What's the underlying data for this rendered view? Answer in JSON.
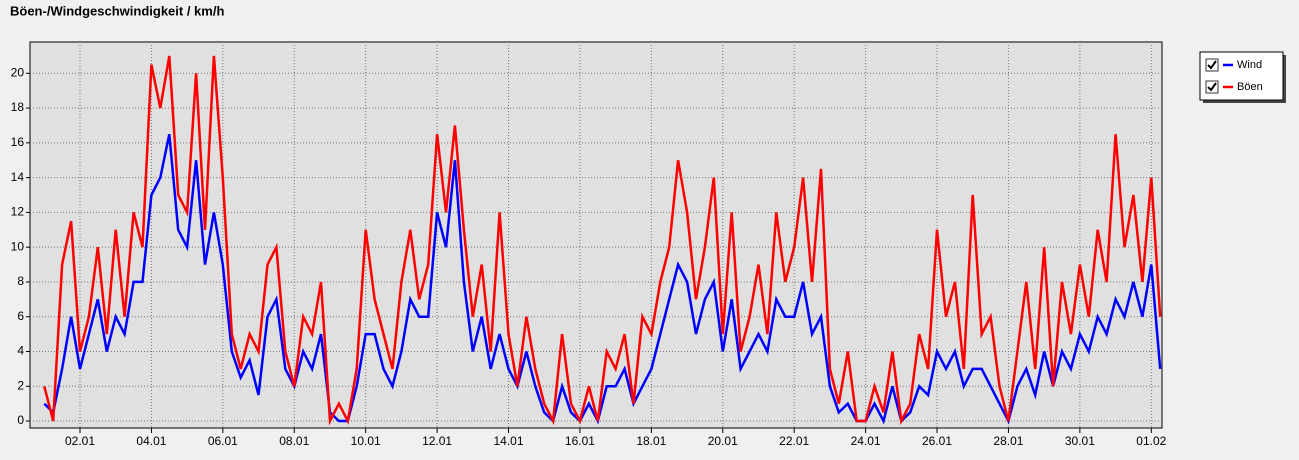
{
  "chart_data": {
    "type": "line",
    "title": "Böen-/Windgeschwindigkeit / km/h",
    "x": [
      1,
      1.25,
      1.5,
      1.75,
      2,
      2.25,
      2.5,
      2.75,
      3,
      3.25,
      3.5,
      3.75,
      4,
      4.25,
      4.5,
      4.75,
      5,
      5.25,
      5.5,
      5.75,
      6,
      6.25,
      6.5,
      6.75,
      7,
      7.25,
      7.5,
      7.75,
      8,
      8.25,
      8.5,
      8.75,
      9,
      9.25,
      9.5,
      9.75,
      10,
      10.25,
      10.5,
      10.75,
      11,
      11.25,
      11.5,
      11.75,
      12,
      12.25,
      12.5,
      12.75,
      13,
      13.25,
      13.5,
      13.75,
      14,
      14.25,
      14.5,
      14.75,
      15,
      15.25,
      15.5,
      15.75,
      16,
      16.25,
      16.5,
      16.75,
      17,
      17.25,
      17.5,
      17.75,
      18,
      18.25,
      18.5,
      18.75,
      19,
      19.25,
      19.5,
      19.75,
      20,
      20.25,
      20.5,
      20.75,
      21,
      21.25,
      21.5,
      21.75,
      22,
      22.25,
      22.5,
      22.75,
      23,
      23.25,
      23.5,
      23.75,
      24,
      24.25,
      24.5,
      24.75,
      25,
      25.25,
      25.5,
      25.75,
      26,
      26.25,
      26.5,
      26.75,
      27,
      27.25,
      27.5,
      27.75,
      28,
      28.25,
      28.5,
      28.75,
      29,
      29.25,
      29.5,
      29.75,
      30,
      30.25,
      30.5,
      30.75,
      31,
      31.25,
      31.5,
      31.75,
      32,
      32.25
    ],
    "series": [
      {
        "name": "Wind",
        "color": "#0000ff",
        "values": [
          1,
          0.5,
          3,
          6,
          3,
          5,
          7,
          4,
          6,
          5,
          8,
          8,
          13,
          14,
          16.5,
          11,
          10,
          15,
          9,
          12,
          9,
          4,
          2.5,
          3.5,
          1.5,
          6,
          7,
          3,
          2,
          4,
          3,
          5,
          0.5,
          0,
          0,
          2,
          5,
          5,
          3,
          2,
          4,
          7,
          6,
          6,
          12,
          10,
          15,
          8,
          4,
          6,
          3,
          5,
          3,
          2,
          4,
          2,
          0.5,
          0,
          2,
          0.5,
          0,
          1,
          0,
          2,
          2,
          3,
          1,
          2,
          3,
          5,
          7,
          9,
          8,
          5,
          7,
          8,
          4,
          7,
          3,
          4,
          5,
          4,
          7,
          6,
          6,
          8,
          5,
          6,
          2,
          0.5,
          1,
          0,
          0,
          1,
          0,
          2,
          0,
          0.5,
          2,
          1.5,
          4,
          3,
          4,
          2,
          3,
          3,
          2,
          1,
          0,
          2,
          3,
          1.5,
          4,
          2,
          4,
          3,
          5,
          4,
          6,
          5,
          7,
          6,
          8,
          6,
          9,
          3
        ]
      },
      {
        "name": "Böen",
        "color": "#ff0000",
        "values": [
          2,
          0,
          9,
          11.5,
          4,
          6,
          10,
          5,
          11,
          6,
          12,
          10,
          20.5,
          18,
          21,
          13,
          12,
          20,
          11,
          21,
          14,
          5,
          3,
          5,
          4,
          9,
          10,
          4,
          2,
          6,
          5,
          8,
          0,
          1,
          0,
          3,
          11,
          7,
          5,
          3,
          8,
          11,
          7,
          9,
          16.5,
          12,
          17,
          11,
          6,
          9,
          4,
          12,
          5,
          2,
          6,
          3,
          1,
          0,
          5,
          1,
          0,
          2,
          0,
          4,
          3,
          5,
          1,
          6,
          5,
          8,
          10,
          15,
          12,
          7,
          10,
          14,
          5,
          12,
          4,
          6,
          9,
          5,
          12,
          8,
          10,
          14,
          8,
          14.5,
          3,
          1,
          4,
          0,
          0,
          2,
          0.5,
          4,
          0,
          1,
          5,
          3,
          11,
          6,
          8,
          3,
          13,
          5,
          6,
          2,
          0,
          4,
          8,
          3,
          10,
          2,
          8,
          5,
          9,
          6,
          11,
          8,
          16.5,
          10,
          13,
          8,
          14,
          6
        ]
      }
    ],
    "xlim": [
      0.6,
      32.3
    ],
    "ylim": [
      -0.4,
      21.8
    ],
    "xticks": [
      {
        "value": 2,
        "label": "02.01"
      },
      {
        "value": 4,
        "label": "04.01"
      },
      {
        "value": 6,
        "label": "06.01"
      },
      {
        "value": 8,
        "label": "08.01"
      },
      {
        "value": 10,
        "label": "10.01"
      },
      {
        "value": 12,
        "label": "12.01"
      },
      {
        "value": 14,
        "label": "14.01"
      },
      {
        "value": 16,
        "label": "16.01"
      },
      {
        "value": 18,
        "label": "18.01"
      },
      {
        "value": 20,
        "label": "20.01"
      },
      {
        "value": 22,
        "label": "22.01"
      },
      {
        "value": 24,
        "label": "24.01"
      },
      {
        "value": 26,
        "label": "26.01"
      },
      {
        "value": 28,
        "label": "28.01"
      },
      {
        "value": 30,
        "label": "30.01"
      },
      {
        "value": 32,
        "label": "01.02"
      }
    ],
    "yticks": [
      0,
      2,
      4,
      6,
      8,
      10,
      12,
      14,
      16,
      18,
      20
    ],
    "grid": true,
    "legend": "upper right"
  }
}
